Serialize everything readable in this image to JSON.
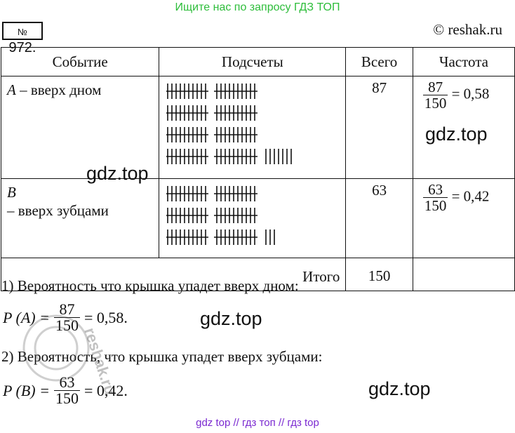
{
  "banner": "Ищите нас по запросу ГДЗ ТОП",
  "problem_number_prefix": "№",
  "problem_number": "972.",
  "site": "© reshak.ru",
  "table": {
    "headers": [
      "Событие",
      "Подсчеты",
      "Всего",
      "Частота"
    ],
    "rows": [
      {
        "event_letter": "A",
        "event_text": " – вверх дном",
        "tally_count": 87,
        "total": "87",
        "freq_num": "87",
        "freq_den": "150",
        "freq_val": "= 0,58"
      },
      {
        "event_letter": "B",
        "event_text": "– вверх зубцами",
        "tally_count": 63,
        "total": "63",
        "freq_num": "63",
        "freq_den": "150",
        "freq_val": "= 0,42"
      }
    ],
    "total_label": "Итого",
    "total_value": "150"
  },
  "answers": {
    "line1": "1) Вероятность что крышка упадет вверх дном:",
    "formula1": {
      "lhs": "P (A) =",
      "num": "87",
      "den": "150",
      "rhs": "= 0,58."
    },
    "line2": "2) Вероятность, что крышка упадет вверх зубцами:",
    "formula2": {
      "lhs": "P (B) =",
      "num": "63",
      "den": "150",
      "rhs": "= 0,42."
    }
  },
  "watermarks": [
    "gdz.top",
    "gdz.top",
    "gdz.top",
    "gdz.top"
  ],
  "stamp_text": "reshak.ru",
  "footer": "gdz top  //  гдз топ  //  гдз top",
  "colors": {
    "banner": "#2dbd3a",
    "footer": "#7b2ad1",
    "text": "#111111"
  }
}
